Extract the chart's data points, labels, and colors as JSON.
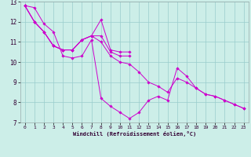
{
  "xlabel": "Windchill (Refroidissement éolien,°C)",
  "background_color": "#cceee8",
  "line_color": "#cc00cc",
  "grid_color": "#99cccc",
  "xlim": [
    -0.5,
    23.5
  ],
  "ylim": [
    7,
    13
  ],
  "xticks": [
    0,
    1,
    2,
    3,
    4,
    5,
    6,
    7,
    8,
    9,
    10,
    11,
    12,
    13,
    14,
    15,
    16,
    17,
    18,
    19,
    20,
    21,
    22,
    23
  ],
  "yticks": [
    7,
    8,
    9,
    10,
    11,
    12,
    13
  ],
  "series": [
    {
      "x": [
        0,
        1,
        2,
        3,
        4,
        5,
        6,
        7,
        8,
        9,
        10,
        11,
        12,
        13,
        14,
        15,
        16,
        17,
        18,
        19,
        20,
        21,
        22,
        23
      ],
      "y": [
        12.8,
        12.7,
        11.9,
        11.5,
        10.3,
        10.2,
        10.3,
        11.1,
        8.2,
        7.8,
        7.5,
        7.2,
        7.5,
        8.1,
        8.3,
        8.1,
        9.7,
        9.3,
        8.7,
        8.4,
        8.3,
        8.1,
        7.9,
        7.7
      ]
    },
    {
      "x": [
        0,
        1,
        2,
        3,
        4,
        5,
        6,
        7,
        8,
        9,
        10,
        11
      ],
      "y": [
        12.8,
        12.0,
        11.5,
        10.8,
        10.6,
        10.6,
        11.1,
        11.3,
        12.1,
        10.6,
        10.5,
        10.5
      ]
    },
    {
      "x": [
        0,
        1,
        2,
        3,
        4,
        5,
        6,
        7,
        8,
        9,
        10,
        11
      ],
      "y": [
        12.8,
        12.0,
        11.5,
        10.8,
        10.6,
        10.6,
        11.1,
        11.3,
        11.3,
        10.5,
        10.3,
        10.3
      ]
    },
    {
      "x": [
        0,
        1,
        2,
        3,
        4,
        5,
        6,
        7,
        8,
        9,
        10,
        11,
        12,
        13,
        14,
        15,
        16,
        17,
        18,
        19,
        20,
        21,
        22,
        23
      ],
      "y": [
        12.8,
        12.0,
        11.5,
        10.8,
        10.6,
        10.6,
        11.1,
        11.3,
        11.0,
        10.3,
        10.0,
        9.9,
        9.5,
        9.0,
        8.8,
        8.5,
        9.2,
        9.0,
        8.7,
        8.4,
        8.3,
        8.1,
        7.9,
        7.7
      ]
    }
  ]
}
